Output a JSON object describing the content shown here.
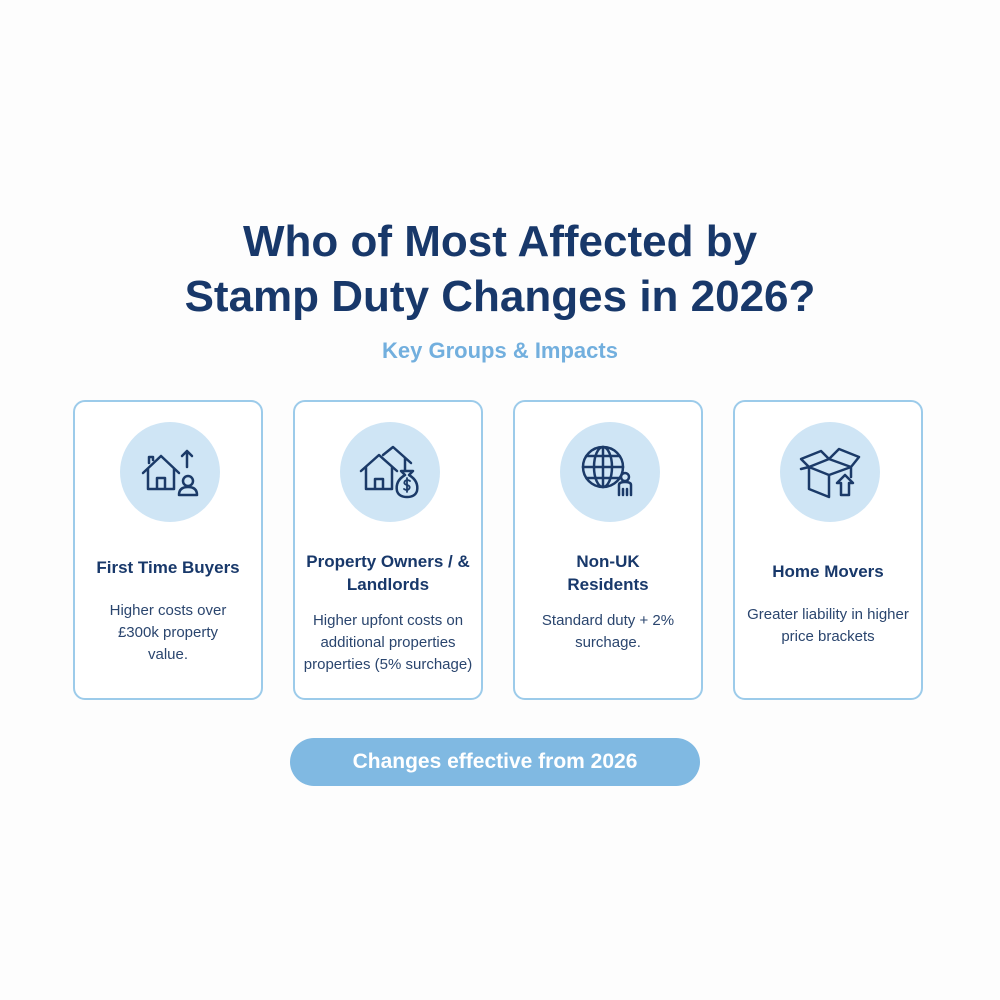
{
  "title": {
    "line1": "Who  of Most Affected by",
    "line2": "Stamp Duty Changes in 2026?"
  },
  "subtitle": "Key Groups & Impacts",
  "cards": [
    {
      "icon": "house-person-arrow-icon",
      "title": "First Time Buyers",
      "description": "Higher costs over £300k property value."
    },
    {
      "icon": "houses-money-bag-icon",
      "title": "Property Owners / & Landlords",
      "description": "Higher upfont costs on additional properties properties (5% surchage)"
    },
    {
      "icon": "globe-person-icon",
      "title": "Non-UK Residents",
      "description": "Standard duty + 2% surchage."
    },
    {
      "icon": "box-arrow-icon",
      "title": "Home Movers",
      "description": "Greater liability in higher price brackets"
    }
  ],
  "footer_pill": "Changes effective from 2026",
  "colors": {
    "navy": "#18386a",
    "accent": "#80b9e2",
    "circle": "#cfe5f5",
    "border": "#9ccbea"
  }
}
